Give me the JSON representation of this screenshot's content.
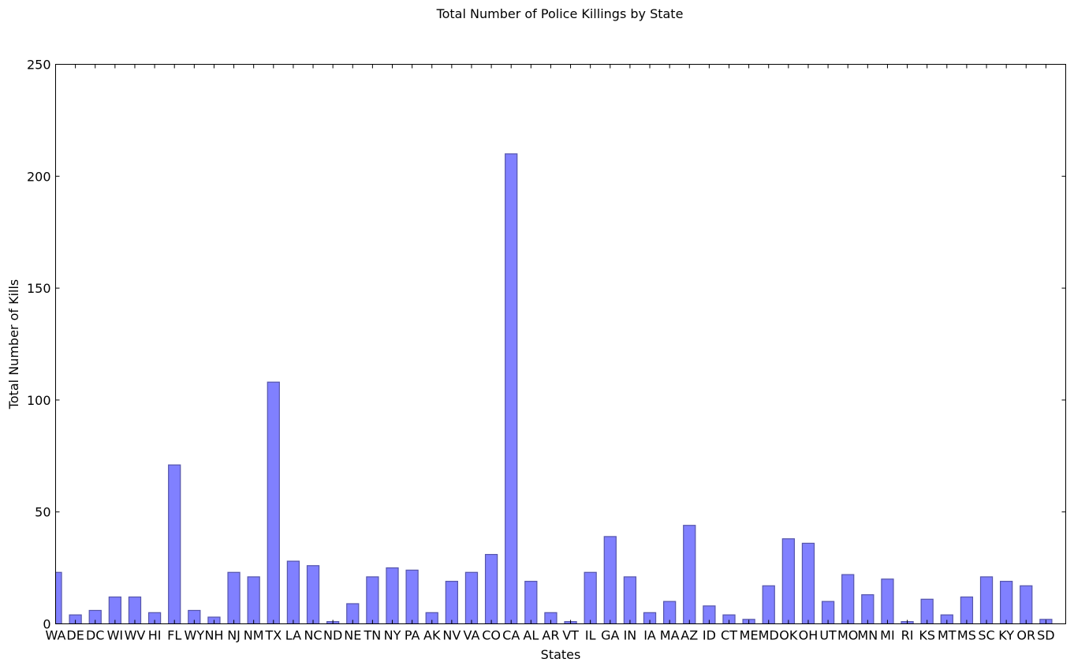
{
  "chart_data": {
    "type": "bar",
    "title": "Total Number of Police Killings by State",
    "xlabel": "States",
    "ylabel": "Total Number of Kills",
    "ylim": [
      0,
      250
    ],
    "yticks": [
      0,
      50,
      100,
      150,
      200,
      250
    ],
    "grid": false,
    "legend": "none",
    "bar_color": "#8080ff",
    "bar_edge_color": "#5555aa",
    "categories": [
      "WA",
      "DE",
      "DC",
      "WI",
      "WV",
      "HI",
      "FL",
      "WY",
      "NH",
      "NJ",
      "NM",
      "TX",
      "LA",
      "NC",
      "ND",
      "NE",
      "TN",
      "NY",
      "PA",
      "AK",
      "NV",
      "VA",
      "CO",
      "CA",
      "AL",
      "AR",
      "VT",
      "IL",
      "GA",
      "IN",
      "IA",
      "MA",
      "AZ",
      "ID",
      "CT",
      "ME",
      "MD",
      "OK",
      "OH",
      "UT",
      "MO",
      "MN",
      "MI",
      "RI",
      "KS",
      "MT",
      "MS",
      "SC",
      "KY",
      "OR",
      "SD"
    ],
    "values": [
      23,
      4,
      6,
      12,
      12,
      5,
      71,
      6,
      3,
      23,
      21,
      108,
      28,
      26,
      1,
      9,
      21,
      25,
      24,
      5,
      19,
      23,
      31,
      210,
      19,
      5,
      1,
      23,
      39,
      21,
      5,
      10,
      44,
      8,
      4,
      2,
      17,
      38,
      36,
      10,
      22,
      13,
      20,
      1,
      11,
      4,
      12,
      21,
      19,
      17,
      2
    ]
  }
}
